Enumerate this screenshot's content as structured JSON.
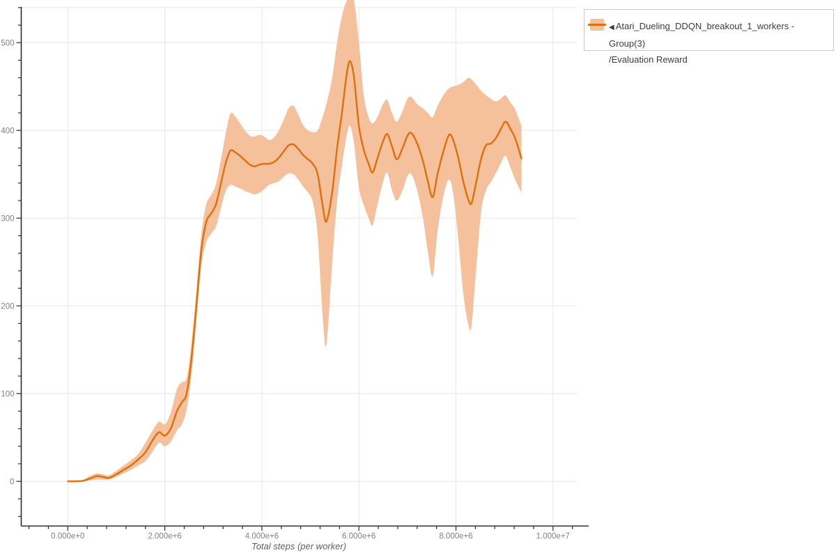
{
  "legend": {
    "arrow": "◀",
    "series_label": "Atari_Dueling_DDQN_breakout_1_workers - Group(3)",
    "metric_label": "/Evaluation Reward"
  },
  "chart_data": {
    "type": "line",
    "title": "",
    "xlabel": "Total steps (per worker)",
    "ylabel": "",
    "grid": true,
    "legend_position": "top-right",
    "xlim": [
      -800000,
      10700000
    ],
    "ylim": [
      -51,
      540
    ],
    "x_ticks_major": [
      0,
      2000000,
      4000000,
      6000000,
      8000000,
      10000000
    ],
    "x_tick_labels": [
      "0.000e+0",
      "2.000e+6",
      "4.000e+6",
      "6.000e+6",
      "8.000e+6",
      "1.000e+7"
    ],
    "x_minor_step": 400000,
    "y_ticks_major": [
      0,
      100,
      200,
      300,
      400,
      500
    ],
    "y_tick_labels": [
      "0",
      "100",
      "200",
      "300",
      "400",
      "500"
    ],
    "y_minor_step": 20,
    "y_gridlines": [
      0,
      100,
      200,
      300,
      400,
      500,
      540
    ],
    "colors": {
      "line": "#df6e0b",
      "band": "#f4c19c",
      "grid": "#e7e7e7",
      "axis": "#2b2b2b",
      "tick_text": "#808080"
    },
    "series": [
      {
        "name": "Atari_Dueling_DDQN_breakout_1_workers - Group(3)/Evaluation Reward",
        "color": "#df6e0b",
        "band_color": "#f4c19c",
        "x": [
          0,
          150000,
          300000,
          450000,
          600000,
          720000,
          850000,
          1000000,
          1150000,
          1300000,
          1450000,
          1600000,
          1750000,
          1880000,
          2000000,
          2120000,
          2250000,
          2350000,
          2450000,
          2550000,
          2650000,
          2750000,
          2850000,
          2950000,
          3050000,
          3150000,
          3250000,
          3350000,
          3450000,
          3550000,
          3650000,
          3750000,
          3850000,
          3950000,
          4050000,
          4150000,
          4250000,
          4350000,
          4450000,
          4550000,
          4650000,
          4750000,
          4850000,
          4950000,
          5050000,
          5150000,
          5250000,
          5330000,
          5450000,
          5550000,
          5650000,
          5750000,
          5820000,
          5900000,
          6000000,
          6100000,
          6200000,
          6280000,
          6380000,
          6480000,
          6580000,
          6680000,
          6780000,
          6900000,
          7000000,
          7080000,
          7200000,
          7320000,
          7420000,
          7520000,
          7620000,
          7740000,
          7860000,
          7950000,
          8050000,
          8150000,
          8250000,
          8320000,
          8420000,
          8520000,
          8620000,
          8720000,
          8820000,
          8920000,
          9020000,
          9120000,
          9220000,
          9350000
        ],
        "mean": [
          0,
          0,
          0.5,
          3,
          6,
          5,
          4,
          8,
          13,
          18,
          25,
          33,
          47,
          56,
          52,
          60,
          80,
          90,
          100,
          140,
          200,
          262,
          295,
          305,
          315,
          338,
          362,
          377,
          375,
          371,
          366,
          361,
          359,
          361,
          362,
          362,
          364,
          369,
          376,
          383,
          384,
          379,
          372,
          367,
          362,
          350,
          315,
          296,
          330,
          380,
          420,
          465,
          479,
          460,
          405,
          378,
          362,
          352,
          368,
          385,
          396,
          382,
          367,
          380,
          394,
          397,
          385,
          365,
          342,
          324,
          350,
          376,
          395,
          388,
          368,
          342,
          322,
          317,
          342,
          368,
          383,
          385,
          391,
          401,
          410,
          402,
          391,
          368
        ],
        "lower": [
          0,
          0,
          0,
          1,
          2,
          2,
          2,
          5,
          9,
          13,
          18,
          23,
          34,
          44,
          40,
          45,
          58,
          65,
          82,
          122,
          182,
          244,
          272,
          282,
          290,
          310,
          330,
          338,
          336,
          334,
          331,
          329,
          327,
          329,
          333,
          338,
          340,
          342,
          347,
          351,
          350,
          344,
          336,
          329,
          318,
          280,
          190,
          156,
          250,
          320,
          360,
          395,
          405,
          385,
          335,
          315,
          300,
          292,
          315,
          338,
          352,
          332,
          320,
          332,
          348,
          350,
          332,
          300,
          262,
          234,
          285,
          325,
          344,
          325,
          275,
          215,
          180,
          177,
          245,
          308,
          332,
          341,
          351,
          362,
          371,
          358,
          344,
          329
        ],
        "upper": [
          0,
          0,
          1,
          6,
          9,
          8,
          7,
          12,
          18,
          24,
          31,
          44,
          58,
          68,
          65,
          78,
          105,
          113,
          118,
          158,
          218,
          280,
          315,
          326,
          338,
          365,
          395,
          419,
          416,
          408,
          400,
          394,
          393,
          395,
          393,
          389,
          392,
          400,
          412,
          425,
          428,
          418,
          406,
          400,
          398,
          400,
          415,
          430,
          460,
          500,
          530,
          548,
          550,
          548,
          500,
          440,
          415,
          408,
          415,
          428,
          435,
          420,
          410,
          422,
          436,
          438,
          430,
          425,
          420,
          415,
          428,
          440,
          448,
          450,
          452,
          455,
          460,
          458,
          452,
          445,
          440,
          436,
          433,
          436,
          440,
          432,
          424,
          405
        ]
      }
    ]
  }
}
